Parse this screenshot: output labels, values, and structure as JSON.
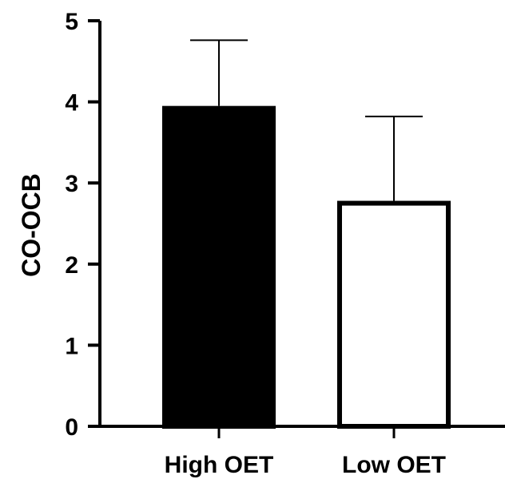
{
  "chart_data": {
    "type": "bar",
    "title": "",
    "xlabel": "",
    "ylabel": "CO-OCB",
    "categories": [
      "High OET",
      "Low OET"
    ],
    "values": [
      3.95,
      2.78
    ],
    "error_upper": [
      4.76,
      3.82
    ],
    "ylim": [
      0,
      5
    ],
    "yticks": [
      "0",
      "1",
      "2",
      "3",
      "4",
      "5"
    ],
    "grid": false,
    "legend": "none",
    "colors": {
      "fills": [
        "#000000",
        "#ffffff"
      ],
      "stroke": "#000000"
    }
  }
}
